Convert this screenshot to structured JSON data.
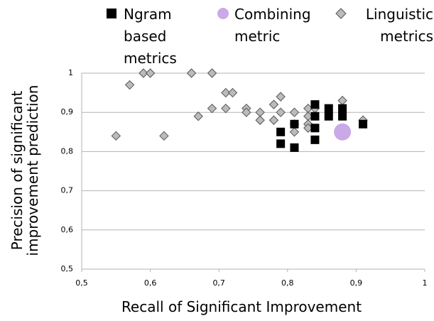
{
  "chart_data": {
    "type": "scatter",
    "xlabel": "Recall of Significant Improvement",
    "ylabel": "Precision of significant improvement prediction",
    "xlim": [
      0.5,
      1
    ],
    "ylim": [
      0.5,
      1
    ],
    "xticks": [
      {
        "value": 0.5,
        "label": "0,5"
      },
      {
        "value": 0.6,
        "label": "0,6"
      },
      {
        "value": 0.7,
        "label": "0,7"
      },
      {
        "value": 0.8,
        "label": "0,8"
      },
      {
        "value": 0.9,
        "label": "0,9"
      },
      1
    ],
    "yticks": [
      {
        "value": 0.5,
        "label": "0,5"
      },
      {
        "value": 0.6,
        "label": "0,6"
      },
      {
        "value": 0.7,
        "label": "0,7"
      },
      {
        "value": 0.8,
        "label": "0,8"
      },
      {
        "value": 0.9,
        "label": "0,9"
      },
      1
    ],
    "grid": true,
    "series": [
      {
        "name": "Ngram based metrics",
        "color": "#000000",
        "marker": "square",
        "x": [
          0.79,
          0.79,
          0.81,
          0.81,
          0.84,
          0.84,
          0.84,
          0.84,
          0.86,
          0.86,
          0.88,
          0.88,
          0.91
        ],
        "values": [
          0.85,
          0.82,
          0.87,
          0.81,
          0.92,
          0.89,
          0.86,
          0.83,
          0.91,
          0.89,
          0.91,
          0.89,
          0.87
        ]
      },
      {
        "name": "Combining metric",
        "color": "#c9a9e8",
        "marker": "circle",
        "x": [
          0.88
        ],
        "values": [
          0.85
        ]
      },
      {
        "name": "Linguistic metrics",
        "color": "#bbbbbb",
        "marker": "diamond",
        "x": [
          0.55,
          0.57,
          0.59,
          0.6,
          0.62,
          0.66,
          0.67,
          0.69,
          0.69,
          0.71,
          0.72,
          0.71,
          0.74,
          0.74,
          0.76,
          0.76,
          0.78,
          0.78,
          0.79,
          0.79,
          0.81,
          0.81,
          0.81,
          0.83,
          0.83,
          0.83,
          0.83,
          0.84,
          0.88,
          0.91
        ],
        "values": [
          0.84,
          0.97,
          1.0,
          1.0,
          0.84,
          1.0,
          0.89,
          1.0,
          0.91,
          0.95,
          0.95,
          0.91,
          0.91,
          0.9,
          0.9,
          0.88,
          0.92,
          0.88,
          0.94,
          0.9,
          0.9,
          0.87,
          0.85,
          0.91,
          0.89,
          0.87,
          0.86,
          0.91,
          0.93,
          0.88
        ]
      }
    ]
  }
}
